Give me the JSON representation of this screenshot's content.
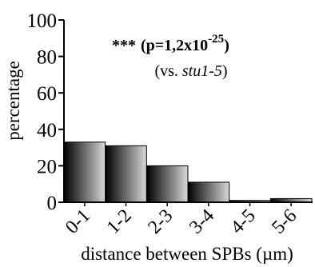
{
  "chart_data": {
    "type": "bar",
    "categories": [
      "0-1",
      "1-2",
      "2-3",
      "3-4",
      "4-5",
      "5-6"
    ],
    "values": [
      33,
      31,
      20,
      11,
      1,
      2
    ],
    "ylim": [
      0,
      100
    ],
    "yticks": [
      "0",
      "20",
      "40",
      "60",
      "80",
      "100"
    ],
    "ylabel": "percentage",
    "xlabel": "distance between SPBs (µm)",
    "grid": false,
    "bar_fill": "horizontal gradient black to light gray",
    "annotation": {
      "stars": "***",
      "p_open": "(p=1,2x10",
      "p_exp": "-25",
      "p_close": ")",
      "vs_open": "(vs. ",
      "vs_strain": "stu1-5",
      "vs_close": ")"
    }
  }
}
